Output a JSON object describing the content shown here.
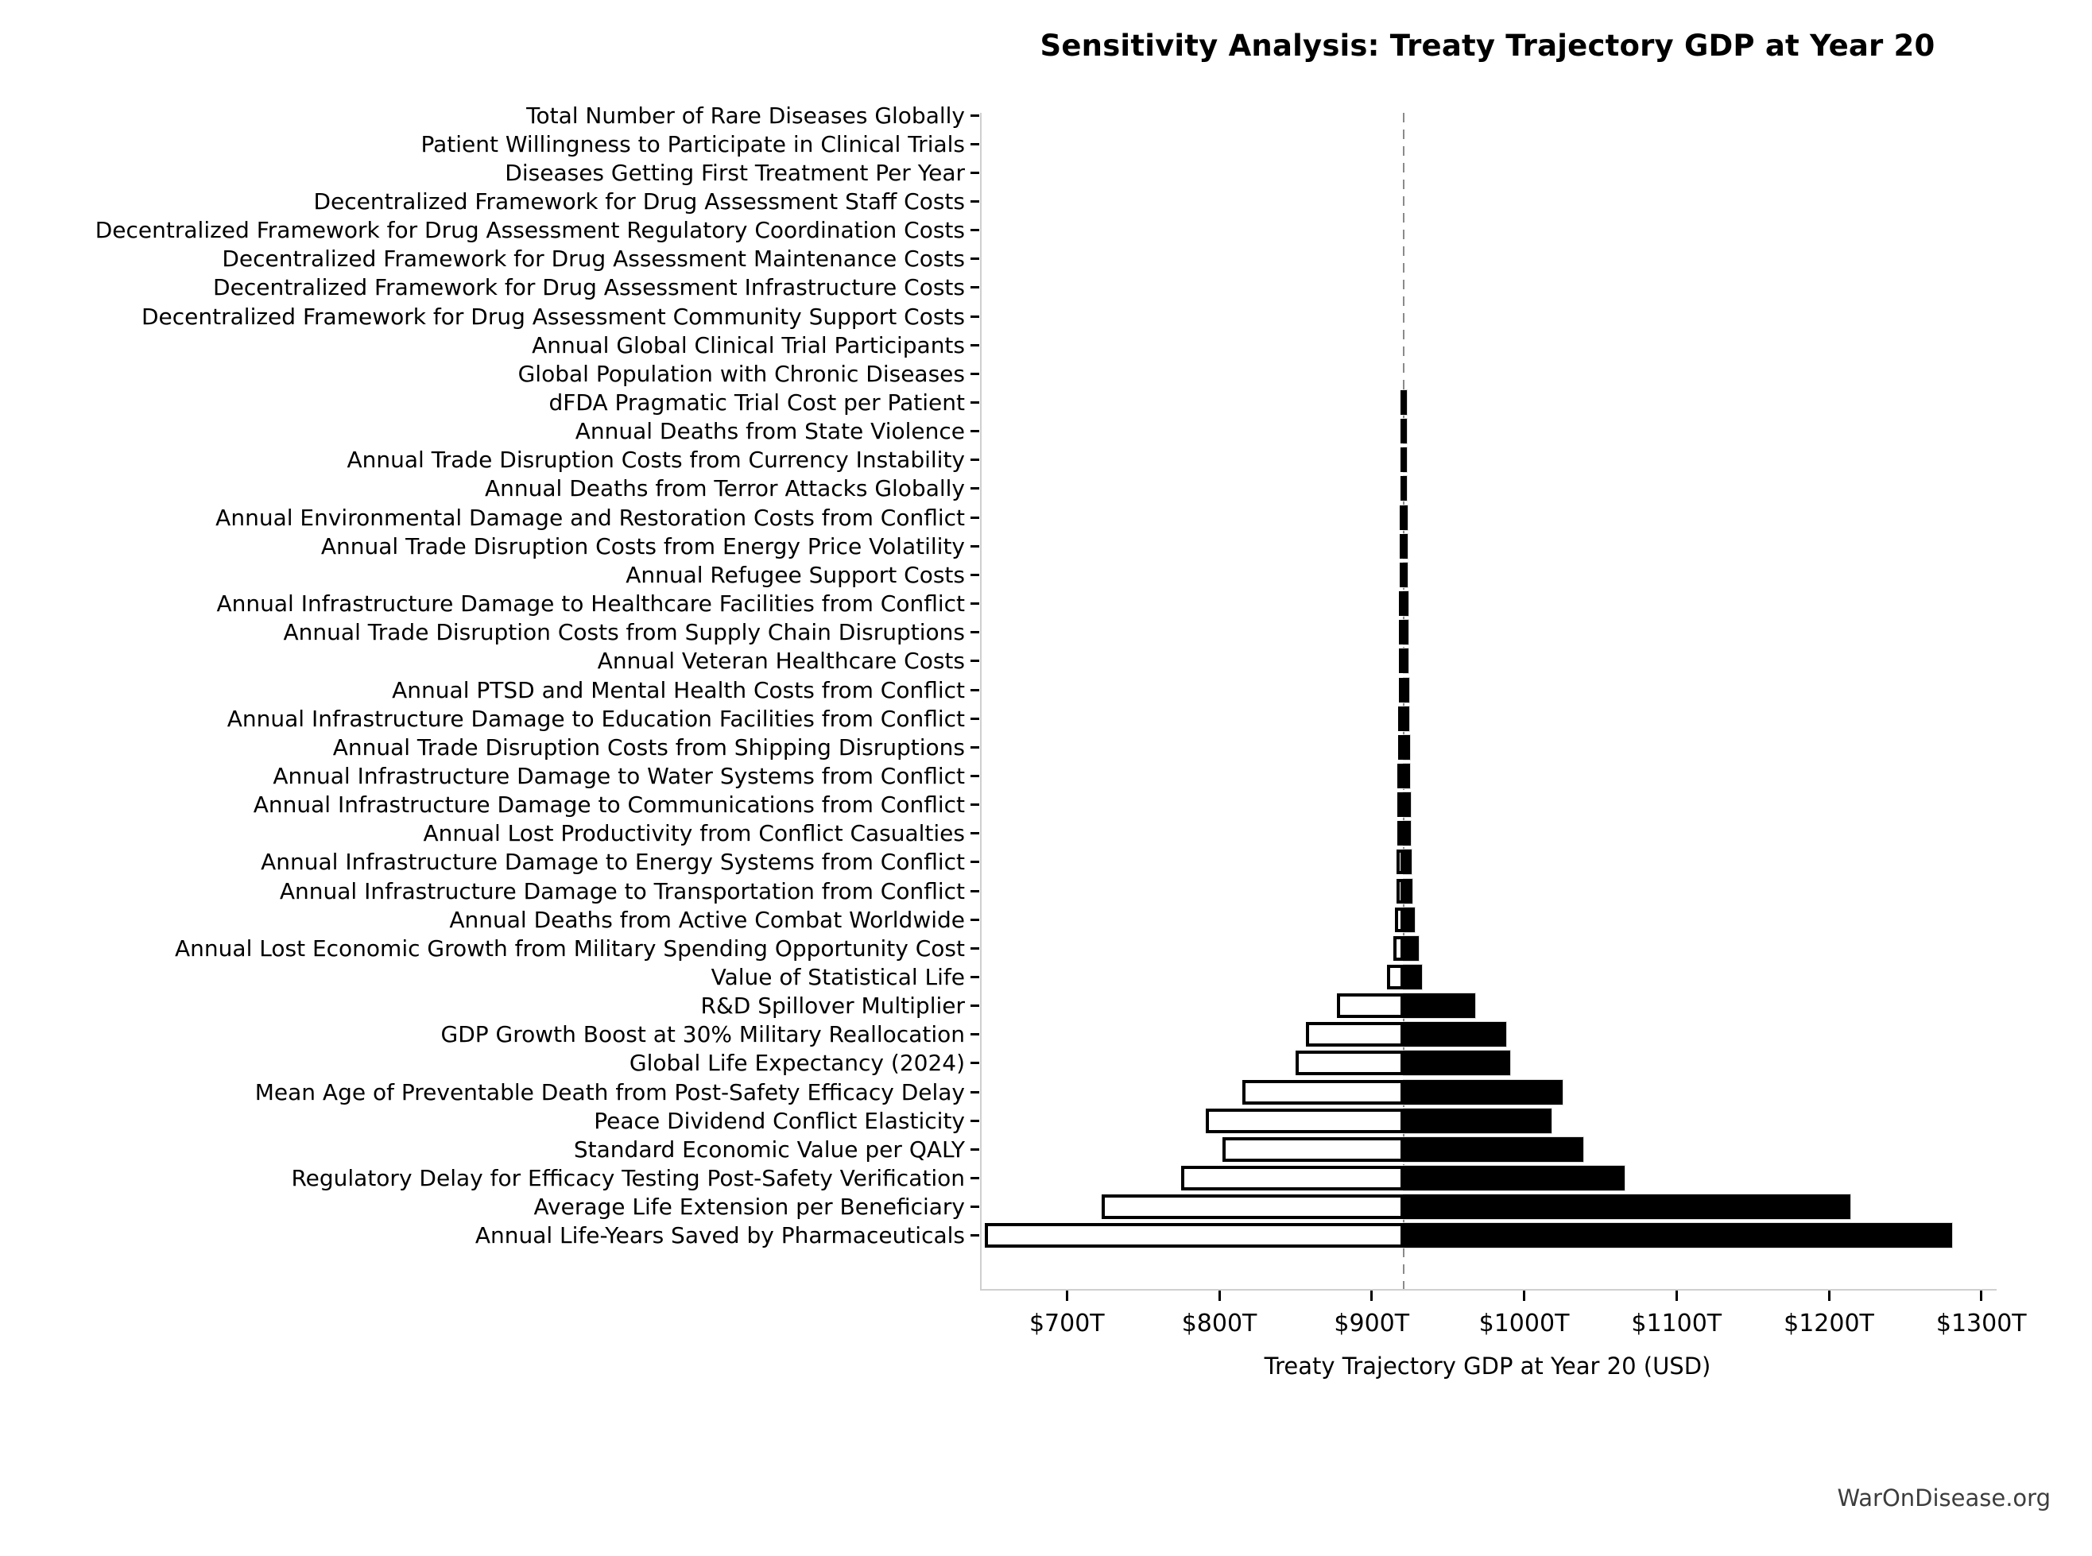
{
  "chart": {
    "title": "Sensitivity Analysis: Treaty Trajectory GDP at Year 20",
    "xlabel": "Treaty Trajectory GDP at Year 20 (USD)"
  },
  "footer": {
    "watermark": "WarOnDisease.org"
  },
  "chart_data": {
    "type": "bar",
    "subtype": "tornado",
    "orientation": "horizontal",
    "title": "Sensitivity Analysis: Treaty Trajectory GDP at Year 20",
    "xlabel": "Treaty Trajectory GDP at Year 20 (USD)",
    "unit": "trillions USD",
    "baseline_value": 920,
    "xlim": [
      643,
      1309
    ],
    "grid": false,
    "legend": false,
    "x_tick_values": [
      700,
      800,
      900,
      1000,
      1100,
      1200,
      1300
    ],
    "x_tick_labels": [
      "$700T",
      "$800T",
      "$900T",
      "$1000T",
      "$1100T",
      "$1200T",
      "$1300T"
    ],
    "colors": {
      "low_bar_fill": "#ffffff",
      "low_bar_edge": "#000000",
      "high_bar_fill": "#000000",
      "baseline_line": "#8a8a8a",
      "spine": "#cfcfcf",
      "watermark_text": "#3d3d3d"
    },
    "parameters": [
      {
        "label": "Total Number of Rare Diseases Globally",
        "low": 920,
        "high": 920
      },
      {
        "label": "Patient Willingness to Participate in Clinical Trials",
        "low": 920,
        "high": 920
      },
      {
        "label": "Diseases Getting First Treatment Per Year",
        "low": 920,
        "high": 920
      },
      {
        "label": "Decentralized Framework for Drug Assessment Staff Costs",
        "low": 920,
        "high": 920
      },
      {
        "label": "Decentralized Framework for Drug Assessment Regulatory Coordination Costs",
        "low": 920,
        "high": 920
      },
      {
        "label": "Decentralized Framework for Drug Assessment Maintenance Costs",
        "low": 920,
        "high": 920
      },
      {
        "label": "Decentralized Framework for Drug Assessment Infrastructure Costs",
        "low": 920,
        "high": 920
      },
      {
        "label": "Decentralized Framework for Drug Assessment Community Support Costs",
        "low": 920,
        "high": 920
      },
      {
        "label": "Annual Global Clinical Trial Participants",
        "low": 920,
        "high": 920
      },
      {
        "label": "Global Population with Chronic Diseases",
        "low": 920,
        "high": 920
      },
      {
        "label": "dFDA Pragmatic Trial Cost per Patient",
        "low": 918,
        "high": 922
      },
      {
        "label": "Annual Deaths from State Violence",
        "low": 918,
        "high": 922
      },
      {
        "label": "Annual Trade Disruption Costs from Currency Instability",
        "low": 918,
        "high": 922
      },
      {
        "label": "Annual Deaths from Terror Attacks Globally",
        "low": 918,
        "high": 922
      },
      {
        "label": "Annual Environmental Damage and Restoration Costs from Conflict",
        "low": 917.5,
        "high": 922.5
      },
      {
        "label": "Annual Trade Disruption Costs from Energy Price Volatility",
        "low": 917.5,
        "high": 922.5
      },
      {
        "label": "Annual Refugee Support Costs",
        "low": 917.5,
        "high": 922.5
      },
      {
        "label": "Annual Infrastructure Damage to Healthcare Facilities from Conflict",
        "low": 917,
        "high": 923
      },
      {
        "label": "Annual Trade Disruption Costs from Supply Chain Disruptions",
        "low": 917,
        "high": 923
      },
      {
        "label": "Annual Veteran Healthcare Costs",
        "low": 917,
        "high": 923
      },
      {
        "label": "Annual PTSD and Mental Health Costs from Conflict",
        "low": 917,
        "high": 923.5
      },
      {
        "label": "Annual Infrastructure Damage to Education Facilities from Conflict",
        "low": 916.5,
        "high": 923.5
      },
      {
        "label": "Annual Trade Disruption Costs from Shipping Disruptions",
        "low": 916.5,
        "high": 924
      },
      {
        "label": "Annual Infrastructure Damage to Water Systems from Conflict",
        "low": 916,
        "high": 924
      },
      {
        "label": "Annual Infrastructure Damage to Communications from Conflict",
        "low": 916,
        "high": 924.5
      },
      {
        "label": "Annual Lost Productivity from Conflict Casualties",
        "low": 916,
        "high": 924.5
      },
      {
        "label": "Annual Infrastructure Damage to Energy Systems from Conflict",
        "low": 915.5,
        "high": 925
      },
      {
        "label": "Annual Infrastructure Damage to Transportation from Conflict",
        "low": 915.5,
        "high": 925.5
      },
      {
        "label": "Annual Deaths from Active Combat Worldwide",
        "low": 914,
        "high": 927
      },
      {
        "label": "Annual Lost Economic Growth from Military Spending Opportunity Cost",
        "low": 913,
        "high": 930
      },
      {
        "label": "Value of Statistical Life",
        "low": 909,
        "high": 932
      },
      {
        "label": "R&D Spillover Multiplier",
        "low": 876,
        "high": 967
      },
      {
        "label": "GDP Growth Boost at 30% Military Reallocation",
        "low": 856,
        "high": 987
      },
      {
        "label": "Global Life Expectancy (2024)",
        "low": 849,
        "high": 990
      },
      {
        "label": "Mean Age of Preventable Death from Post-Safety Efficacy Delay",
        "low": 814,
        "high": 1024
      },
      {
        "label": "Peace Dividend Conflict Elasticity",
        "low": 790,
        "high": 1017
      },
      {
        "label": "Standard Economic Value per QALY",
        "low": 801,
        "high": 1038
      },
      {
        "label": "Regulatory Delay for Efficacy Testing Post-Safety Verification",
        "low": 774,
        "high": 1065
      },
      {
        "label": "Average Life Extension per Beneficiary",
        "low": 722,
        "high": 1213
      },
      {
        "label": "Annual Life-Years Saved by Pharmaceuticals",
        "low": 645,
        "high": 1280
      }
    ]
  }
}
